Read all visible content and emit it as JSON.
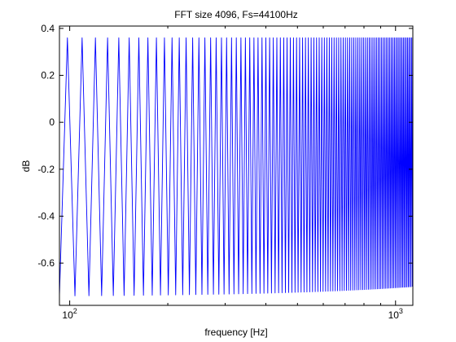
{
  "chart_data": {
    "type": "line",
    "title": "FFT size 4096, Fs=44100Hz",
    "xlabel": "frequency [Hz]",
    "ylabel": "dB",
    "x_scale": "log",
    "xlim": [
      93,
      1130
    ],
    "ylim": [
      -0.78,
      0.41
    ],
    "x_ticks": [
      {
        "value": 100,
        "base": "10",
        "exp": "2"
      },
      {
        "value": 1000,
        "base": "10",
        "exp": "3"
      }
    ],
    "y_ticks": [
      {
        "value": 0.4,
        "label": "0.4"
      },
      {
        "value": 0.2,
        "label": "0.2"
      },
      {
        "value": 0,
        "label": "0"
      },
      {
        "value": -0.2,
        "label": "-0.2"
      },
      {
        "value": -0.4,
        "label": "-0.4"
      },
      {
        "value": -0.6,
        "label": "-0.6"
      }
    ],
    "grid": false,
    "series": [
      {
        "color": "#0000ff",
        "ripple_period_hz": 10.77,
        "max_db": 0.36,
        "min_db_start": -0.74,
        "min_db_end": -0.7,
        "x_start": 93,
        "x_end": 1130
      }
    ]
  }
}
